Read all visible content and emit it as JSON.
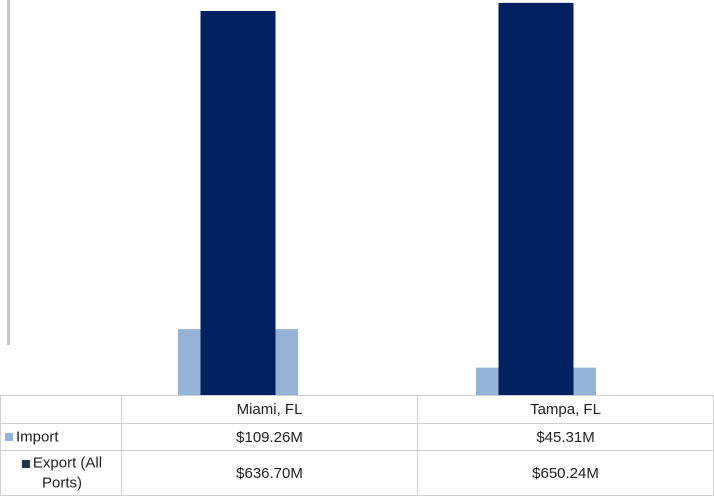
{
  "chart_data": {
    "type": "bar",
    "categories": [
      "Miami, FL",
      "Tampa, FL"
    ],
    "series": [
      {
        "name": "Import",
        "color": "#95b3d7",
        "values": [
          109.26,
          45.31
        ],
        "value_labels": [
          "$109.26M",
          "$45.31M"
        ]
      },
      {
        "name": "Export (All Ports)",
        "color": "#002060",
        "values": [
          636.7,
          650.24
        ],
        "value_labels": [
          "$636.70M",
          "$650.24M"
        ]
      }
    ],
    "legend_colors": [
      "#95b3d7",
      "#1f3b4d"
    ],
    "ylim": [
      0,
      655
    ]
  }
}
